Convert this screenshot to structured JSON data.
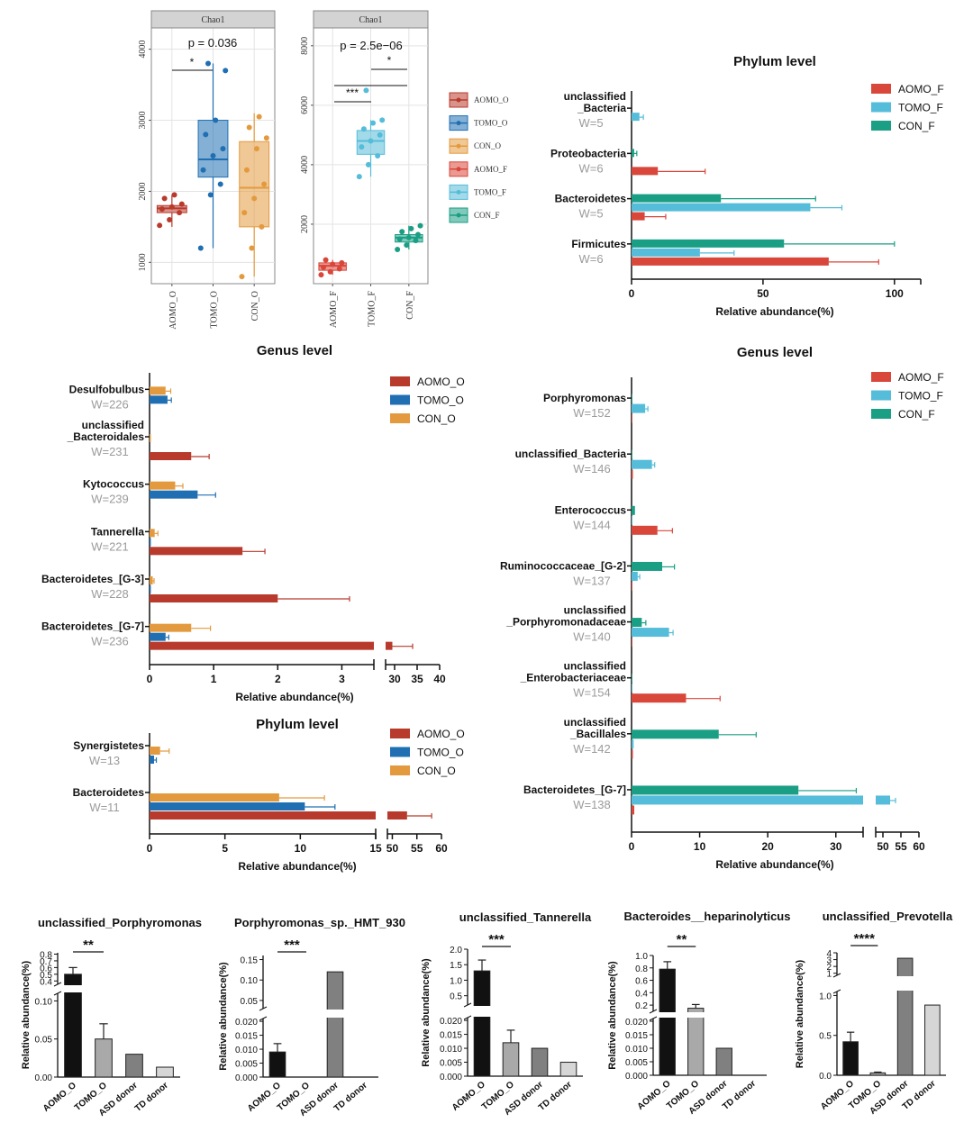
{
  "colors": {
    "AOMO_O": "#b83a2c",
    "TOMO_O": "#1f6fb2",
    "CON_O": "#e39a3e",
    "AOMO_F": "#d9463a",
    "TOMO_F": "#55bcd9",
    "CON_F": "#1a9e84",
    "bar_black": "#111111",
    "bar_mid": "#a9a9a9",
    "bar_dark": "#808080",
    "bar_light": "#d6d6d6"
  },
  "chart_data": [
    {
      "id": "chao1_oral",
      "type": "box",
      "title": "Chao1",
      "categories": [
        "AOMO_O",
        "TOMO_O",
        "CON_O"
      ],
      "ylim": [
        700,
        4300
      ],
      "yticks": [
        "1000",
        "2000",
        "3000",
        "4000"
      ],
      "pvalue": "p = 0.036",
      "star": "*",
      "boxes": [
        {
          "q1": 1700,
          "median": 1760,
          "q3": 1800,
          "min": 1500,
          "max": 1950
        },
        {
          "q1": 2200,
          "median": 2450,
          "q3": 3000,
          "min": 1200,
          "max": 3800
        },
        {
          "q1": 1500,
          "median": 2050,
          "q3": 2700,
          "min": 800,
          "max": 3100
        }
      ],
      "points": [
        [
          1520,
          1600,
          1700,
          1750,
          1780,
          1820,
          1900,
          1950
        ],
        [
          1200,
          1950,
          2100,
          2300,
          2500,
          2600,
          2800,
          3000,
          3700,
          3800
        ],
        [
          800,
          1200,
          1500,
          1700,
          1900,
          2100,
          2300,
          2600,
          2750,
          2900,
          3050
        ]
      ]
    },
    {
      "id": "chao1_fecal",
      "type": "box",
      "title": "Chao1",
      "categories": [
        "AOMO_F",
        "TOMO_F",
        "CON_F"
      ],
      "ylim": [
        0,
        8600
      ],
      "yticks": [
        "2000",
        "4000",
        "6000",
        "8000"
      ],
      "pvalue": "p = 2.5e−06",
      "star_left": "***",
      "star_right": "*",
      "boxes": [
        {
          "q1": 450,
          "median": 600,
          "q3": 700,
          "min": 300,
          "max": 800
        },
        {
          "q1": 4350,
          "median": 4800,
          "q3": 5150,
          "min": 3600,
          "max": 5500
        },
        {
          "q1": 1400,
          "median": 1550,
          "q3": 1650,
          "min": 1150,
          "max": 1950
        }
      ],
      "points": [
        [
          300,
          400,
          500,
          550,
          650,
          700,
          800
        ],
        [
          3600,
          4000,
          4300,
          4600,
          4800,
          5000,
          5200,
          5400,
          5500,
          6500
        ],
        [
          1150,
          1300,
          1450,
          1500,
          1550,
          1650,
          1750,
          1850,
          1950
        ]
      ],
      "legend": [
        "AOMO_O",
        "TOMO_O",
        "CON_O",
        "AOMO_F",
        "TOMO_F",
        "CON_F"
      ]
    },
    {
      "id": "phylum_fecal",
      "type": "bar",
      "orientation": "horizontal",
      "title": "Phylum level",
      "xlabel": "Relative abundance(%)",
      "xlim": [
        0,
        110
      ],
      "xticks": [
        "0",
        "50",
        "100"
      ],
      "legend": [
        "AOMO_F",
        "TOMO_F",
        "CON_F"
      ],
      "groups": [
        {
          "name": "unclassified\n_Bacteria",
          "w": "W=5",
          "values": [
            0,
            3,
            0
          ],
          "errors": [
            0,
            1.5,
            0
          ]
        },
        {
          "name": "Proteobacteria",
          "w": "W=6",
          "values": [
            10,
            0,
            1
          ],
          "errors": [
            18,
            0,
            1
          ]
        },
        {
          "name": "Bacteroidetes",
          "w": "W=5",
          "values": [
            5,
            68,
            34
          ],
          "errors": [
            8,
            12,
            36
          ]
        },
        {
          "name": "Firmicutes",
          "w": "W=6",
          "values": [
            75,
            26,
            58
          ],
          "errors": [
            19,
            13,
            42
          ]
        }
      ]
    },
    {
      "id": "genus_oral",
      "type": "bar",
      "orientation": "horizontal",
      "title": "Genus level",
      "xlabel": "Relative abundance(%)",
      "xticks_left": [
        "0",
        "1",
        "2",
        "3"
      ],
      "xticks_right": [
        "30",
        "35",
        "40"
      ],
      "legend": [
        "AOMO_O",
        "TOMO_O",
        "CON_O"
      ],
      "groups": [
        {
          "name": "Desulfobulbus",
          "w": "W=226",
          "values": [
            0,
            0.28,
            0.25
          ],
          "errors": [
            0,
            0.06,
            0.08
          ]
        },
        {
          "name": "unclassified\n_Bacteroidales",
          "w": "W=231",
          "values": [
            0.65,
            0,
            0.02
          ],
          "errors": [
            0.28,
            0,
            0
          ]
        },
        {
          "name": "Kytococcus",
          "w": "W=239",
          "values": [
            0,
            0.75,
            0.4
          ],
          "errors": [
            0,
            0.28,
            0.12
          ]
        },
        {
          "name": "Tannerella",
          "w": "W=221",
          "values": [
            1.45,
            0.02,
            0.08
          ],
          "errors": [
            0.35,
            0,
            0.05
          ]
        },
        {
          "name": "Bacteroidetes_[G-3]",
          "w": "W=228",
          "values": [
            2.0,
            0.02,
            0.05
          ],
          "errors": [
            1.12,
            0,
            0.02
          ]
        },
        {
          "name": "Bacteroidetes_[G-7]",
          "w": "W=236",
          "values": [
            29.5,
            0.25,
            0.65
          ],
          "errors": [
            4.5,
            0.05,
            0.3
          ]
        }
      ]
    },
    {
      "id": "phylum_oral",
      "type": "bar",
      "orientation": "horizontal",
      "title": "Phylum level",
      "xlabel": "Relative abundance(%)",
      "xticks_left": [
        "0",
        "5",
        "10",
        "15"
      ],
      "xticks_right": [
        "50",
        "55",
        "60"
      ],
      "legend": [
        "AOMO_O",
        "TOMO_O",
        "CON_O"
      ],
      "groups": [
        {
          "name": "Synergistetes",
          "w": "W=13",
          "values": [
            0,
            0.3,
            0.7
          ],
          "errors": [
            0,
            0.15,
            0.6
          ]
        },
        {
          "name": "Bacteroidetes",
          "w": "W=11",
          "values": [
            53,
            10.3,
            8.6
          ],
          "errors": [
            5,
            2,
            3
          ]
        }
      ]
    },
    {
      "id": "genus_fecal",
      "type": "bar",
      "orientation": "horizontal",
      "title": "Genus level",
      "xlabel": "Relative abundance(%)",
      "xticks_left": [
        "0",
        "10",
        "20",
        "30"
      ],
      "xticks_right": [
        "50",
        "55",
        "60"
      ],
      "legend": [
        "AOMO_F",
        "TOMO_F",
        "CON_F"
      ],
      "groups": [
        {
          "name": "Porphyromonas",
          "w": "W=152",
          "values": [
            0.1,
            2,
            0.1
          ],
          "errors": [
            0,
            0.4,
            0
          ]
        },
        {
          "name": "unclassified_Bacteria",
          "w": "W=146",
          "values": [
            0.2,
            3,
            0.1
          ],
          "errors": [
            0,
            0.4,
            0
          ]
        },
        {
          "name": "Enterococcus",
          "w": "W=144",
          "values": [
            3.8,
            0.1,
            0.5
          ],
          "errors": [
            2.2,
            0,
            0
          ]
        },
        {
          "name": "Ruminococcaceae_[G-2]",
          "w": "W=137",
          "values": [
            0.1,
            0.9,
            4.5
          ],
          "errors": [
            0,
            0.3,
            1.8
          ]
        },
        {
          "name": "unclassified\n_Porphyromonadaceae",
          "w": "W=140",
          "values": [
            0.1,
            5.5,
            1.5
          ],
          "errors": [
            0,
            0.6,
            0.6
          ]
        },
        {
          "name": "unclassified\n_Enterobacteriaceae",
          "w": "W=154",
          "values": [
            8,
            0.1,
            0.1
          ],
          "errors": [
            5,
            0,
            0
          ]
        },
        {
          "name": "unclassified\n_Bacillales",
          "w": "W=142",
          "values": [
            0.2,
            0.3,
            12.8
          ],
          "errors": [
            0,
            0,
            5.5
          ]
        },
        {
          "name": "Bacteroidetes_[G-7]",
          "w": "W=138",
          "values": [
            0.4,
            52,
            24.5
          ],
          "errors": [
            0,
            1.5,
            8.5
          ]
        }
      ]
    },
    {
      "id": "unclassified_porphyromonas",
      "type": "bar",
      "title": "unclassified_Porphyromonas",
      "ylabel": "Relative abundance(%)",
      "categories": [
        "AOMO_O",
        "TOMO_O",
        "ASD donor",
        "TD donor"
      ],
      "values": [
        0.5,
        0.05,
        0.03,
        0.013
      ],
      "errors": [
        0.1,
        0.02,
        0,
        0
      ],
      "yticks_low": [
        "0.00",
        "0.05",
        "0.10"
      ],
      "yticks_high": [
        "0.4",
        "0.5",
        "0.6",
        "0.7",
        "0.8"
      ],
      "sig": "**"
    },
    {
      "id": "porphyromonas_hmt930",
      "type": "bar",
      "title": "Porphyromonas_sp._HMT_930",
      "ylabel": "Relative abundance(%)",
      "categories": [
        "AOMO_O",
        "TOMO_O",
        "ASD donor",
        "TD donor"
      ],
      "values": [
        0.009,
        0,
        0.12,
        0
      ],
      "errors": [
        0.003,
        0,
        0,
        0
      ],
      "yticks_low": [
        "0.000",
        "0.005",
        "0.010",
        "0.015",
        "0.020"
      ],
      "yticks_high": [
        "0.05",
        "0.10",
        "0.15"
      ],
      "sig": "***"
    },
    {
      "id": "unclassified_tannerella",
      "type": "bar",
      "title": "unclassified_Tannerella",
      "ylabel": "Relative abundance(%)",
      "categories": [
        "AOMO_O",
        "TOMO_O",
        "ASD donor",
        "TD donor"
      ],
      "values": [
        1.3,
        0.012,
        0.01,
        0.005
      ],
      "errors": [
        0.35,
        0.0045,
        0,
        0
      ],
      "yticks_low": [
        "0.000",
        "0.005",
        "0.010",
        "0.015",
        "0.020"
      ],
      "yticks_high": [
        "0.5",
        "1.0",
        "1.5",
        "2.0"
      ],
      "sig": "***"
    },
    {
      "id": "bacteroides_heparinolyticus",
      "type": "bar",
      "title": "Bacteroides__heparinolyticus",
      "ylabel": "Relative abundance(%)",
      "categories": [
        "AOMO_O",
        "TOMO_O",
        "ASD donor",
        "TD donor"
      ],
      "values": [
        0.78,
        0.15,
        0.01,
        0
      ],
      "errors": [
        0.12,
        0.06,
        0,
        0
      ],
      "yticks_low": [
        "0.000",
        "0.005",
        "0.010",
        "0.015",
        "0.020"
      ],
      "yticks_high": [
        "0.2",
        "0.4",
        "0.6",
        "0.8",
        "1.0"
      ],
      "sig": "**"
    },
    {
      "id": "unclassified_prevotella",
      "type": "bar",
      "title": "unclassified_Prevotella",
      "ylabel": "Relative abundance(%)",
      "categories": [
        "AOMO_O",
        "TOMO_O",
        "ASD donor",
        "TD donor"
      ],
      "values": [
        0.42,
        0.03,
        3.2,
        0.88
      ],
      "errors": [
        0.12,
        0.01,
        0,
        0
      ],
      "yticks_low": [
        "0.0",
        "0.5",
        "1.0"
      ],
      "yticks_high": [
        "1",
        "2",
        "3",
        "4"
      ],
      "sig": "****"
    }
  ]
}
